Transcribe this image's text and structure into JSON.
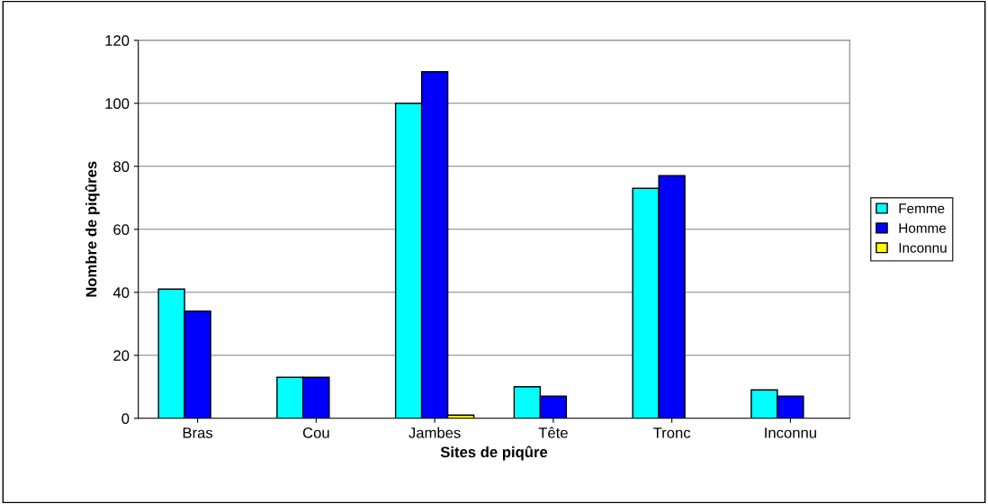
{
  "chart_data": {
    "type": "bar",
    "xlabel": "Sites de piqûre",
    "ylabel": "Nombre de piqûres",
    "categories": [
      "Bras",
      "Cou",
      "Jambes",
      "Tête",
      "Tronc",
      "Inconnu"
    ],
    "series": [
      {
        "name": "Femme",
        "color": "#00ffff",
        "values": [
          41,
          13,
          100,
          10,
          73,
          9
        ]
      },
      {
        "name": "Homme",
        "color": "#0000ff",
        "values": [
          34,
          13,
          110,
          7,
          77,
          7
        ]
      },
      {
        "name": "Inconnu",
        "color": "#ffff00",
        "values": [
          null,
          null,
          1,
          null,
          null,
          null
        ]
      }
    ],
    "ylim": [
      0,
      120
    ],
    "yticks": [
      0,
      20,
      40,
      60,
      80,
      100,
      120
    ],
    "grid": "y",
    "legend": "right"
  }
}
